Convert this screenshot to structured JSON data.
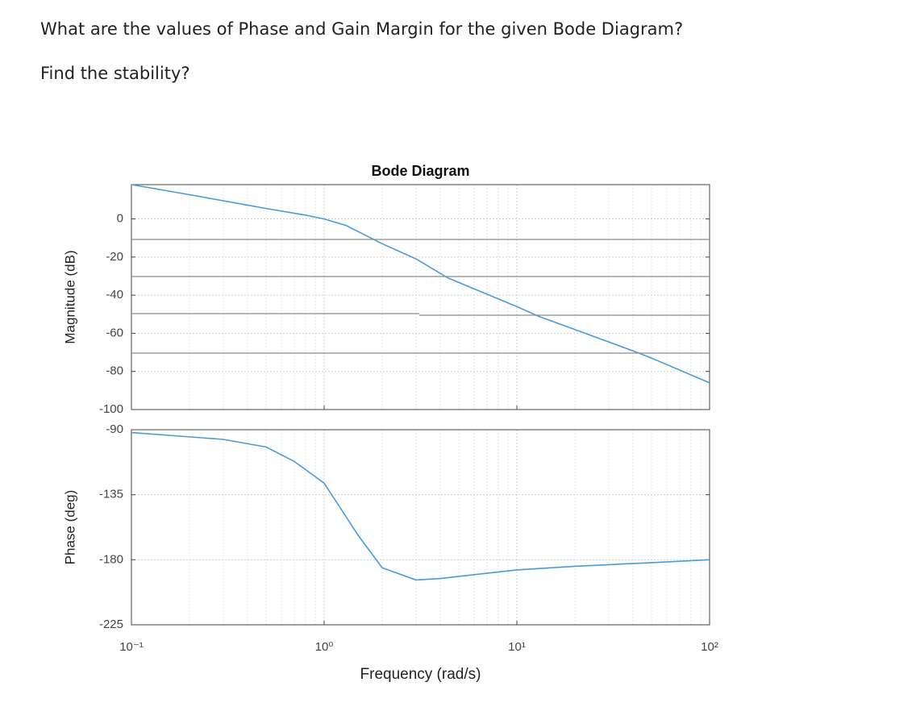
{
  "question": [
    "What are the values of Phase and Gain Margin for the given Bode Diagram?",
    "Find the stability?"
  ],
  "chart_data": [
    {
      "type": "line",
      "title": "Bode Diagram",
      "ylabel": "Magnitude (dB)",
      "log_x": true,
      "grid": true,
      "x": [
        0.1,
        0.2,
        0.5,
        0.8,
        1,
        1.3,
        2,
        3,
        4.4,
        10,
        12.9,
        20,
        42,
        50,
        100
      ],
      "series": [
        {
          "name": "Magnitude",
          "color": "#4a9bd6",
          "values": [
            18,
            12.7,
            5.5,
            2,
            0,
            -3.4,
            -13,
            -21,
            -31,
            -46,
            -51,
            -58,
            -70,
            -73,
            -86
          ]
        }
      ],
      "xlim": [
        0.1,
        100
      ],
      "xticks": [
        0.1,
        1,
        10,
        100
      ],
      "ylim": [
        -100,
        18
      ],
      "yticks": [
        -100,
        -80,
        -60,
        -40,
        -20,
        0
      ]
    },
    {
      "type": "line",
      "ylabel": "Phase (deg)",
      "xlabel": "Frequency (rad/s)",
      "log_x": true,
      "grid": true,
      "x": [
        0.1,
        0.3,
        0.5,
        0.7,
        1,
        1.5,
        2,
        3,
        4,
        10,
        20,
        50,
        100
      ],
      "series": [
        {
          "name": "Phase",
          "color": "#4a9bd6",
          "values": [
            -92,
            -96.7,
            -102,
            -112,
            -127,
            -163,
            -185.5,
            -194,
            -193,
            -187,
            -184.5,
            -182,
            -180
          ]
        }
      ],
      "xlim": [
        0.1,
        100
      ],
      "xticks": [
        {
          "value": 0.1,
          "label": "10⁻¹"
        },
        {
          "value": 1,
          "label": "10⁰"
        },
        {
          "value": 10,
          "label": "10¹"
        },
        {
          "value": 100,
          "label": "10²"
        }
      ],
      "ylim": [
        -225,
        -90
      ],
      "yticks": [
        -225,
        -180,
        -135,
        -90
      ]
    }
  ]
}
